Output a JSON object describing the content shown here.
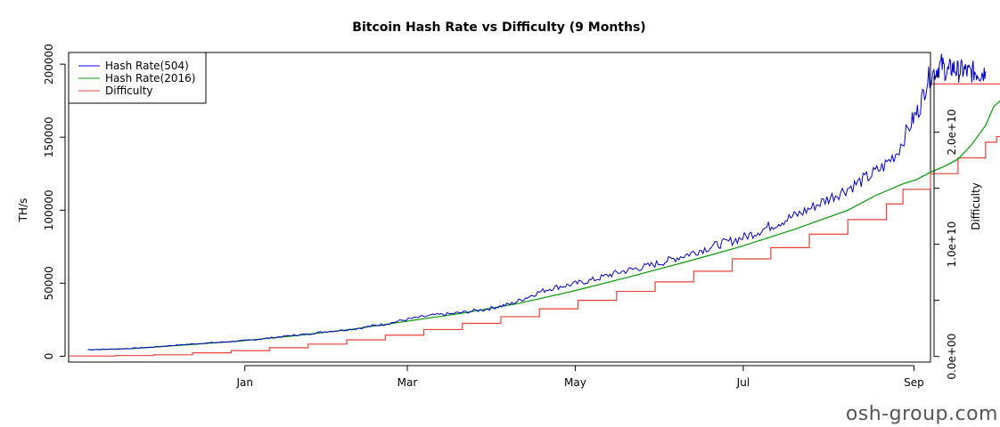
{
  "chart_data": {
    "type": "line",
    "title": "Bitcoin Hash Rate vs Difficulty (9 Months)",
    "ylabel_left": "TH/s",
    "ylabel_right": "Difficulty",
    "x_ticks": [
      "Jan",
      "Mar",
      "May",
      "Jul",
      "Sep"
    ],
    "x_tick_days": [
      61,
      120,
      181,
      242,
      304
    ],
    "x_range_days": [
      -3,
      310
    ],
    "y_left_ticks": [
      0,
      50000,
      100000,
      150000,
      200000
    ],
    "y_left_tick_labels": [
      "0",
      "50000",
      "100000",
      "150000",
      "200000"
    ],
    "y_left_range": [
      -4000,
      208000
    ],
    "y_right_ticks": [
      0,
      5000000000,
      10000000000,
      15000000000,
      20000000000,
      25000000000
    ],
    "y_right_tick_labels": [
      "0.0e+00",
      "",
      "1.0e+10",
      "",
      "2.0e+10",
      ""
    ],
    "y_right_range": [
      -500000000,
      27100000000
    ],
    "legend_position": "top-left",
    "series": [
      {
        "name": "Hash Rate(504)",
        "color": "#0000CC",
        "axis": "left",
        "points": [
          [
            4,
            4500
          ],
          [
            10,
            4700
          ],
          [
            16,
            5000
          ],
          [
            22,
            5600
          ],
          [
            28,
            6300
          ],
          [
            34,
            7300
          ],
          [
            40,
            8100
          ],
          [
            46,
            8900
          ],
          [
            52,
            9600
          ],
          [
            58,
            10300
          ],
          [
            64,
            11200
          ],
          [
            70,
            12500
          ],
          [
            76,
            13800
          ],
          [
            80,
            14500
          ],
          [
            84,
            15200
          ],
          [
            90,
            16800
          ],
          [
            96,
            17800
          ],
          [
            102,
            19000
          ],
          [
            108,
            21000
          ],
          [
            112,
            22000
          ],
          [
            118,
            24500
          ],
          [
            124,
            26500
          ],
          [
            130,
            28200
          ],
          [
            136,
            29000
          ],
          [
            142,
            30500
          ],
          [
            148,
            32000
          ],
          [
            153,
            34000
          ],
          [
            158,
            36000
          ],
          [
            163,
            40000
          ],
          [
            168,
            44000
          ],
          [
            173,
            47000
          ],
          [
            178,
            48500
          ],
          [
            183,
            50500
          ],
          [
            188,
            52500
          ],
          [
            193,
            55500
          ],
          [
            198,
            58000
          ],
          [
            203,
            60000
          ],
          [
            208,
            62000
          ],
          [
            213,
            64500
          ],
          [
            218,
            67500
          ],
          [
            223,
            70500
          ],
          [
            228,
            73500
          ],
          [
            233,
            76500
          ],
          [
            238,
            79000
          ],
          [
            243,
            82000
          ],
          [
            248,
            86000
          ],
          [
            253,
            90000
          ],
          [
            258,
            94000
          ],
          [
            263,
            98000
          ],
          [
            268,
            103000
          ],
          [
            273,
            108000
          ],
          [
            278,
            113000
          ],
          [
            283,
            118000
          ],
          [
            288,
            123500
          ],
          [
            293,
            130000
          ],
          [
            298,
            140000
          ],
          [
            303,
            160000
          ],
          [
            306,
            170000
          ],
          [
            309,
            190000
          ],
          [
            312,
            196000
          ],
          [
            314,
            200000
          ],
          [
            316,
            194000
          ],
          [
            318,
            198000
          ],
          [
            320,
            195000
          ],
          [
            322,
            196000
          ],
          [
            324,
            194000
          ],
          [
            326,
            195000
          ],
          [
            328,
            194000
          ],
          [
            330,
            195000
          ]
        ]
      },
      {
        "name": "Hash Rate(2016)",
        "color": "#009900",
        "axis": "left",
        "points": [
          [
            4,
            4400
          ],
          [
            20,
            5200
          ],
          [
            40,
            7800
          ],
          [
            60,
            10500
          ],
          [
            80,
            14200
          ],
          [
            100,
            18500
          ],
          [
            120,
            24000
          ],
          [
            140,
            29500
          ],
          [
            160,
            36000
          ],
          [
            180,
            44500
          ],
          [
            200,
            54000
          ],
          [
            220,
            64000
          ],
          [
            240,
            74500
          ],
          [
            260,
            86500
          ],
          [
            280,
            100000
          ],
          [
            290,
            110000
          ],
          [
            300,
            118000
          ],
          [
            305,
            121000
          ],
          [
            310,
            126000
          ],
          [
            315,
            130000
          ],
          [
            320,
            135000
          ],
          [
            325,
            145000
          ],
          [
            330,
            158000
          ],
          [
            333,
            171000
          ],
          [
            336,
            176000
          ],
          [
            338,
            178000
          ]
        ]
      },
      {
        "name": "Difficulty",
        "color": "#E8403A",
        "axis": "right",
        "steps": [
          [
            -3,
            40000000
          ],
          [
            14,
            80000000
          ],
          [
            28,
            150000000
          ],
          [
            42,
            320000000
          ],
          [
            56,
            520000000
          ],
          [
            70,
            780000000
          ],
          [
            84,
            1100000000
          ],
          [
            98,
            1480000000
          ],
          [
            112,
            1900000000
          ],
          [
            126,
            2400000000
          ],
          [
            140,
            2950000000
          ],
          [
            154,
            3550000000
          ],
          [
            168,
            4250000000
          ],
          [
            182,
            5000000000
          ],
          [
            196,
            5800000000
          ],
          [
            210,
            6650000000
          ],
          [
            224,
            7600000000
          ],
          [
            238,
            8700000000
          ],
          [
            252,
            9700000000
          ],
          [
            266,
            10900000000
          ],
          [
            280,
            12200000000
          ],
          [
            294,
            13600000000
          ],
          [
            300,
            14900000000
          ],
          [
            310,
            16300000000
          ],
          [
            320,
            17700000000
          ],
          [
            330,
            19100000000
          ],
          [
            334,
            19600000000
          ],
          [
            338,
            22800000000
          ],
          [
            341,
            24300000000
          ]
        ]
      }
    ]
  },
  "watermark": "osh-group.com"
}
